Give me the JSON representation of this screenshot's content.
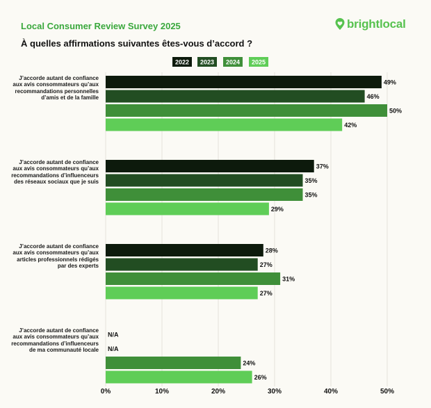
{
  "header": {
    "survey_title": "Local Consumer Review Survey 2025",
    "brand_name": "brightlocal",
    "question": "À quelles affirmations suivantes êtes-vous d’accord ?"
  },
  "colors": {
    "background": "#fbfaf5",
    "title_green": "#3aa83d",
    "brand_green": "#57c24f",
    "series": [
      "#0d1a0c",
      "#224d22",
      "#3f8f39",
      "#5fcd57"
    ],
    "grid": "#e5e3dc"
  },
  "chart_data": {
    "type": "bar",
    "orientation": "horizontal",
    "title": "À quelles affirmations suivantes êtes-vous d’accord ?",
    "xlabel": "",
    "ylabel": "",
    "xlim": [
      0,
      50
    ],
    "x_ticks": [
      "0%",
      "10%",
      "20%",
      "30%",
      "40%",
      "50%"
    ],
    "grid": true,
    "legend_position": "top-center",
    "categories": [
      "J’accorde autant de confiance aux avis consommateurs qu’aux recommandations personnelles d’amis et de la famille",
      "J’accorde autant de confiance aux avis consommateurs qu’aux recommandations d’influenceurs des réseaux sociaux que je suis",
      "J’accorde autant de confiance aux avis consommateurs qu’aux articles professionnels rédigés par des experts",
      "J’accorde autant de confiance aux avis consommateurs qu’aux recommandations d’influenceurs de ma communauté locale"
    ],
    "series": [
      {
        "name": "2022",
        "values": [
          49,
          37,
          28,
          null
        ],
        "labels": [
          "49%",
          "37%",
          "28%",
          "N/A"
        ]
      },
      {
        "name": "2023",
        "values": [
          46,
          35,
          27,
          null
        ],
        "labels": [
          "46%",
          "35%",
          "27%",
          "N/A"
        ]
      },
      {
        "name": "2024",
        "values": [
          50,
          35,
          31,
          24
        ],
        "labels": [
          "50%",
          "35%",
          "31%",
          "24%"
        ]
      },
      {
        "name": "2025",
        "values": [
          42,
          29,
          27,
          26
        ],
        "labels": [
          "42%",
          "29%",
          "27%",
          "26%"
        ]
      }
    ]
  }
}
